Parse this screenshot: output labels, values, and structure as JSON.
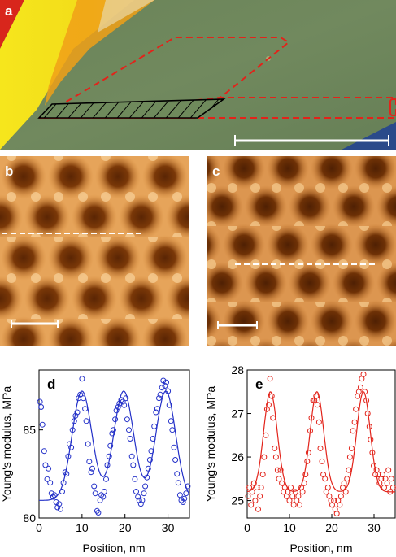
{
  "panels": {
    "a": {
      "letter": "a"
    },
    "b": {
      "letter": "b"
    },
    "c": {
      "letter": "c"
    },
    "d": {
      "letter": "d"
    },
    "e": {
      "letter": "e"
    }
  },
  "colors": {
    "optical_green": "#6f8a5c",
    "flake_yellow": "#f3e21a",
    "outline_red": "#e2231a",
    "afm_dark": "#6b2f06",
    "afm_light": "#f5c27a",
    "series_blue": "#2330c8",
    "series_red": "#e2231a"
  },
  "chart_data": [
    {
      "type": "scatter",
      "panel": "d",
      "xlabel": "Position, nm",
      "ylabel": "Young's modulus, MPa",
      "xlim": [
        0,
        35
      ],
      "ylim": [
        80,
        88.4
      ],
      "xticks": [
        0,
        10,
        20,
        30
      ],
      "yticks": [
        80,
        85
      ],
      "series": [
        {
          "style": "open-circles-with-fit",
          "color": "#2330c8",
          "fit": {
            "baseline": 81.0,
            "amplitude": 6.2,
            "peaks": [
              10,
              19.7,
              29.5
            ],
            "width": 2.3
          },
          "points": [
            [
              0.2,
              86.6
            ],
            [
              0.5,
              86.3
            ],
            [
              0.8,
              85.3
            ],
            [
              1.2,
              83.8
            ],
            [
              1.5,
              83.0
            ],
            [
              1.9,
              82.2
            ],
            [
              2.2,
              82.8
            ],
            [
              2.6,
              82.0
            ],
            [
              2.9,
              81.4
            ],
            [
              3.3,
              81.2
            ],
            [
              3.6,
              81.3
            ],
            [
              4.0,
              80.9
            ],
            [
              4.3,
              80.6
            ],
            [
              4.7,
              80.8
            ],
            [
              5.0,
              80.5
            ],
            [
              5.4,
              81.5
            ],
            [
              5.7,
              82.0
            ],
            [
              6.1,
              82.6
            ],
            [
              6.4,
              82.5
            ],
            [
              6.8,
              83.5
            ],
            [
              7.1,
              84.2
            ],
            [
              7.5,
              84.0
            ],
            [
              7.8,
              85.0
            ],
            [
              8.2,
              85.5
            ],
            [
              8.5,
              85.8
            ],
            [
              8.9,
              86.0
            ],
            [
              9.2,
              86.8
            ],
            [
              9.6,
              87.0
            ],
            [
              10.0,
              87.9
            ],
            [
              10.3,
              86.8
            ],
            [
              10.7,
              86.2
            ],
            [
              11.0,
              85.5
            ],
            [
              11.4,
              84.2
            ],
            [
              11.7,
              83.2
            ],
            [
              12.1,
              82.6
            ],
            [
              12.4,
              82.8
            ],
            [
              12.8,
              81.8
            ],
            [
              13.1,
              81.4
            ],
            [
              13.5,
              80.4
            ],
            [
              13.8,
              80.3
            ],
            [
              14.2,
              81.0
            ],
            [
              14.5,
              81.3
            ],
            [
              14.9,
              81.2
            ],
            [
              15.2,
              81.5
            ],
            [
              15.6,
              82.2
            ],
            [
              15.9,
              83.0
            ],
            [
              16.3,
              83.5
            ],
            [
              16.6,
              84.1
            ],
            [
              17.0,
              84.8
            ],
            [
              17.3,
              85.0
            ],
            [
              17.7,
              85.6
            ],
            [
              18.0,
              86.1
            ],
            [
              18.4,
              86.3
            ],
            [
              18.7,
              86.5
            ],
            [
              19.1,
              86.7
            ],
            [
              19.5,
              86.6
            ],
            [
              19.8,
              86.4
            ],
            [
              20.2,
              86.8
            ],
            [
              20.5,
              85.6
            ],
            [
              20.9,
              85.0
            ],
            [
              21.2,
              84.5
            ],
            [
              21.6,
              83.5
            ],
            [
              21.9,
              83.0
            ],
            [
              22.3,
              82.2
            ],
            [
              22.6,
              81.5
            ],
            [
              23.0,
              81.2
            ],
            [
              23.3,
              81.0
            ],
            [
              23.7,
              80.8
            ],
            [
              24.0,
              81.0
            ],
            [
              24.4,
              81.4
            ],
            [
              24.7,
              81.8
            ],
            [
              25.1,
              82.3
            ],
            [
              25.4,
              82.8
            ],
            [
              25.8,
              83.3
            ],
            [
              26.1,
              83.8
            ],
            [
              26.5,
              84.5
            ],
            [
              26.8,
              85.2
            ],
            [
              27.2,
              86.0
            ],
            [
              27.5,
              86.2
            ],
            [
              27.9,
              86.8
            ],
            [
              28.2,
              87.0
            ],
            [
              28.6,
              87.4
            ],
            [
              28.9,
              87.8
            ],
            [
              29.3,
              87.5
            ],
            [
              29.6,
              87.7
            ],
            [
              30.0,
              87.2
            ],
            [
              30.3,
              86.4
            ],
            [
              30.7,
              85.5
            ],
            [
              31.0,
              85.0
            ],
            [
              31.4,
              84.0
            ],
            [
              31.7,
              83.3
            ],
            [
              32.1,
              82.5
            ],
            [
              32.4,
              82.0
            ],
            [
              32.8,
              81.3
            ],
            [
              33.1,
              81.0
            ],
            [
              33.5,
              80.9
            ],
            [
              33.8,
              81.1
            ],
            [
              34.2,
              81.4
            ],
            [
              34.6,
              81.8
            ]
          ]
        }
      ]
    },
    {
      "type": "scatter",
      "panel": "e",
      "xlabel": "Position, nm",
      "ylabel": "Young's modulus, MPa",
      "xlim": [
        0,
        35
      ],
      "ylim": [
        24.6,
        28
      ],
      "xticks": [
        0,
        10,
        20,
        30
      ],
      "yticks": [
        25,
        26,
        27,
        28
      ],
      "series": [
        {
          "style": "open-circles-with-fit",
          "color": "#e2231a",
          "fit": {
            "baseline": 25.2,
            "amplitude": 2.3,
            "peaks": [
              5.5,
              16.5,
              27.5
            ],
            "width": 1.6
          },
          "points": [
            [
              0.2,
              25.1
            ],
            [
              0.5,
              25.3
            ],
            [
              0.9,
              24.9
            ],
            [
              1.2,
              25.2
            ],
            [
              1.6,
              25.4
            ],
            [
              1.9,
              25.0
            ],
            [
              2.3,
              25.3
            ],
            [
              2.6,
              24.8
            ],
            [
              3.0,
              25.1
            ],
            [
              3.3,
              25.3
            ],
            [
              3.7,
              25.6
            ],
            [
              4.0,
              26.0
            ],
            [
              4.4,
              26.5
            ],
            [
              4.7,
              27.1
            ],
            [
              5.1,
              27.2
            ],
            [
              5.4,
              27.8
            ],
            [
              5.8,
              27.4
            ],
            [
              6.1,
              26.9
            ],
            [
              6.5,
              26.2
            ],
            [
              6.8,
              26.0
            ],
            [
              7.2,
              25.7
            ],
            [
              7.5,
              25.5
            ],
            [
              7.9,
              25.7
            ],
            [
              8.2,
              25.4
            ],
            [
              8.6,
              25.2
            ],
            [
              8.9,
              25.3
            ],
            [
              9.3,
              25.1
            ],
            [
              9.6,
              25.2
            ],
            [
              10.0,
              25.0
            ],
            [
              10.3,
              25.3
            ],
            [
              10.7,
              25.1
            ],
            [
              11.0,
              24.9
            ],
            [
              11.4,
              25.2
            ],
            [
              11.7,
              25.0
            ],
            [
              12.1,
              25.1
            ],
            [
              12.4,
              24.9
            ],
            [
              12.8,
              25.3
            ],
            [
              13.1,
              25.2
            ],
            [
              13.5,
              25.4
            ],
            [
              13.8,
              25.6
            ],
            [
              14.2,
              25.9
            ],
            [
              14.5,
              26.1
            ],
            [
              14.9,
              26.6
            ],
            [
              15.2,
              26.9
            ],
            [
              15.6,
              27.3
            ],
            [
              15.9,
              27.3
            ],
            [
              16.3,
              27.4
            ],
            [
              16.6,
              27.2
            ],
            [
              17.0,
              26.8
            ],
            [
              17.3,
              26.2
            ],
            [
              17.7,
              25.9
            ],
            [
              18.0,
              25.6
            ],
            [
              18.4,
              25.5
            ],
            [
              18.7,
              25.2
            ],
            [
              19.1,
              25.3
            ],
            [
              19.4,
              25.1
            ],
            [
              19.8,
              25.0
            ],
            [
              20.1,
              24.9
            ],
            [
              20.5,
              25.0
            ],
            [
              20.8,
              24.8
            ],
            [
              21.2,
              24.7
            ],
            [
              21.5,
              25.0
            ],
            [
              21.9,
              24.9
            ],
            [
              22.2,
              25.1
            ],
            [
              22.6,
              25.3
            ],
            [
              22.9,
              25.4
            ],
            [
              23.3,
              25.2
            ],
            [
              23.6,
              25.5
            ],
            [
              24.0,
              25.7
            ],
            [
              24.3,
              26.0
            ],
            [
              24.7,
              26.2
            ],
            [
              25.0,
              26.6
            ],
            [
              25.4,
              26.8
            ],
            [
              25.7,
              27.1
            ],
            [
              26.1,
              27.4
            ],
            [
              26.4,
              27.5
            ],
            [
              26.8,
              27.6
            ],
            [
              27.1,
              27.8
            ],
            [
              27.5,
              27.9
            ],
            [
              27.8,
              27.5
            ],
            [
              28.2,
              27.3
            ],
            [
              28.5,
              27.0
            ],
            [
              28.9,
              26.7
            ],
            [
              29.2,
              26.4
            ],
            [
              29.6,
              26.1
            ],
            [
              29.9,
              25.8
            ],
            [
              30.3,
              25.6
            ],
            [
              30.6,
              25.7
            ],
            [
              31.0,
              25.6
            ],
            [
              31.3,
              25.4
            ],
            [
              31.7,
              25.5
            ],
            [
              32.0,
              25.6
            ],
            [
              32.4,
              25.3
            ],
            [
              32.7,
              25.5
            ],
            [
              33.1,
              25.4
            ],
            [
              33.4,
              25.7
            ],
            [
              33.8,
              25.2
            ],
            [
              34.1,
              25.5
            ],
            [
              34.5,
              25.3
            ]
          ]
        }
      ]
    }
  ]
}
